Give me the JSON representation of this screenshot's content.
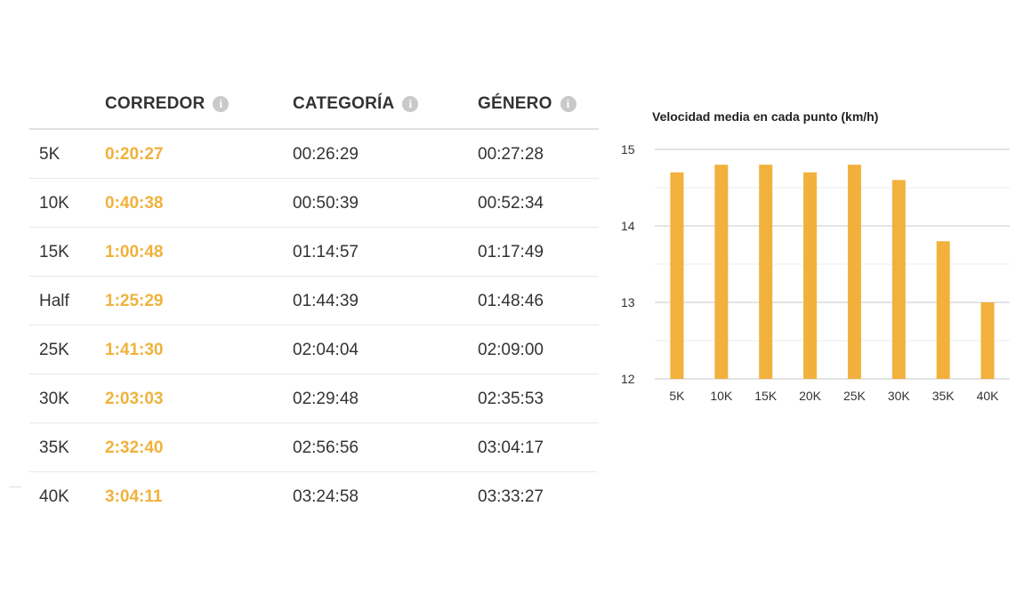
{
  "table": {
    "headers": [
      {
        "label": "",
        "info": false
      },
      {
        "label": "CORREDOR",
        "info": true
      },
      {
        "label": "CATEGORÍA",
        "info": true
      },
      {
        "label": "GÉNERO",
        "info": true
      }
    ],
    "info_glyph": "i",
    "rows": [
      {
        "point": "5K",
        "runner": "0:20:27",
        "category": "00:26:29",
        "gender": "00:27:28"
      },
      {
        "point": "10K",
        "runner": "0:40:38",
        "category": "00:50:39",
        "gender": "00:52:34"
      },
      {
        "point": "15K",
        "runner": "1:00:48",
        "category": "01:14:57",
        "gender": "01:17:49"
      },
      {
        "point": "Half",
        "runner": "1:25:29",
        "category": "01:44:39",
        "gender": "01:48:46"
      },
      {
        "point": "25K",
        "runner": "1:41:30",
        "category": "02:04:04",
        "gender": "02:09:00"
      },
      {
        "point": "30K",
        "runner": "2:03:03",
        "category": "02:29:48",
        "gender": "02:35:53"
      },
      {
        "point": "35K",
        "runner": "2:32:40",
        "category": "02:56:56",
        "gender": "03:04:17"
      },
      {
        "point": "40K",
        "runner": "3:04:11",
        "category": "03:24:58",
        "gender": "03:33:27"
      }
    ]
  },
  "colors": {
    "accent": "#f0b23c",
    "bar": "#f2b13c",
    "text": "#333333",
    "info_icon": "#c9c9c9",
    "grid": "#e3e3e3"
  },
  "chart_data": {
    "type": "bar",
    "title": "Velocidad media en cada punto (km/h)",
    "categories": [
      "5K",
      "10K",
      "15K",
      "20K",
      "25K",
      "30K",
      "35K",
      "40K"
    ],
    "values": [
      14.7,
      14.8,
      14.8,
      14.7,
      14.8,
      14.6,
      13.8,
      13.0
    ],
    "xlabel": "",
    "ylabel": "",
    "ylim": [
      12,
      15
    ],
    "yticks": [
      12,
      13,
      14,
      15
    ],
    "grid": true,
    "legend": "none"
  }
}
